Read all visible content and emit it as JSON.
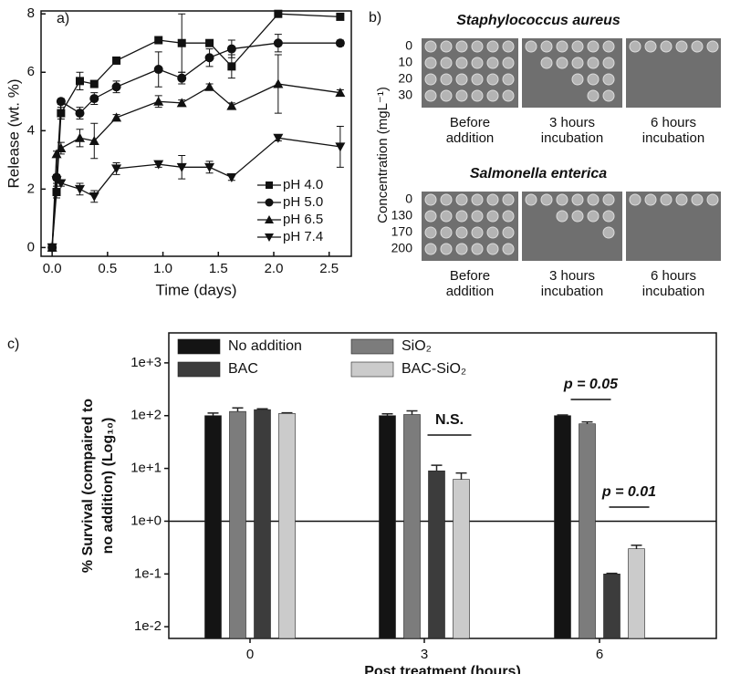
{
  "chart_data": [
    {
      "type": "line",
      "panel_label": "a)",
      "x_label": "Time (days)",
      "y_label": "Release (wt. %)",
      "x": [
        0,
        0.04,
        0.08,
        0.25,
        0.38,
        0.58,
        0.96,
        1.17,
        1.42,
        1.62,
        2.04,
        2.6
      ],
      "series": [
        {
          "name": "pH 4.0",
          "marker": "square",
          "color": "#111111",
          "values": [
            0,
            1.9,
            4.6,
            5.7,
            5.6,
            6.4,
            7.1,
            7.0,
            7.0,
            6.2,
            8.0,
            7.9
          ],
          "errors": [
            0,
            0.2,
            0.2,
            0.3,
            0.1,
            0.1,
            0.1,
            1.0,
            0.1,
            0.4,
            0.1,
            0.1
          ]
        },
        {
          "name": "pH 5.0",
          "marker": "circle",
          "color": "#111111",
          "values": [
            0,
            2.4,
            5.0,
            4.6,
            5.1,
            5.5,
            6.1,
            5.8,
            6.5,
            6.8,
            7.0,
            7.0
          ],
          "errors": [
            0,
            0.1,
            0.1,
            0.2,
            0.2,
            0.2,
            0.6,
            0.2,
            0.3,
            0.3,
            0.3,
            0.1
          ]
        },
        {
          "name": "pH 6.5",
          "marker": "triangle-up",
          "color": "#111111",
          "values": [
            0,
            3.2,
            3.4,
            3.75,
            3.65,
            4.45,
            5.0,
            4.95,
            5.5,
            4.85,
            5.6,
            5.3
          ],
          "errors": [
            0,
            0.1,
            0.2,
            0.3,
            0.6,
            0.1,
            0.2,
            0.1,
            0.1,
            0.1,
            1.0,
            0.1
          ]
        },
        {
          "name": "pH 7.4",
          "marker": "triangle-down",
          "color": "#111111",
          "values": [
            0,
            2.3,
            2.2,
            2.0,
            1.75,
            2.7,
            2.85,
            2.75,
            2.75,
            2.4,
            3.75,
            3.45
          ],
          "errors": [
            0,
            0.1,
            0.1,
            0.2,
            0.2,
            0.2,
            0.1,
            0.4,
            0.2,
            0.1,
            0.1,
            0.7
          ]
        }
      ],
      "xlim": [
        -0.1,
        2.7
      ],
      "ylim": [
        -0.3,
        8.1
      ],
      "xticks": [
        {
          "value": 0,
          "label": "0.0"
        },
        {
          "value": 0.5,
          "label": "0.5"
        },
        {
          "value": 1,
          "label": "1.0"
        },
        {
          "value": 1.5,
          "label": "1.5"
        },
        {
          "value": 2,
          "label": "2.0"
        },
        {
          "value": 2.5,
          "label": "2.5"
        }
      ],
      "yticks": [
        0,
        2,
        4,
        6,
        8
      ],
      "grid": false,
      "legend": "lower-right"
    },
    {
      "type": "bar",
      "panel_label": "c)",
      "log_scale": true,
      "x_label": "Post treatment (hours)",
      "y_label": [
        "% Survival (compaired to",
        "no addition) (Log₁₀)"
      ],
      "categories": [
        "0",
        "3",
        "6"
      ],
      "series": [
        {
          "name": "No addition",
          "color": "#141414",
          "values": [
            100,
            100,
            100
          ],
          "errors": [
            12,
            8,
            3
          ]
        },
        {
          "name": "SiO₂",
          "color": "#7c7c7c",
          "values": [
            120,
            105,
            70
          ],
          "errors": [
            20,
            18,
            6
          ]
        },
        {
          "name": "BAC",
          "color": "#3c3c3c",
          "values": [
            130,
            9,
            0.1
          ],
          "errors": [
            5,
            2.5,
            0.003
          ]
        },
        {
          "name": "BAC-SiO₂",
          "color": "#cbcbcb",
          "values": [
            110,
            6.2,
            0.3
          ],
          "errors": [
            3,
            2,
            0.05
          ]
        }
      ],
      "ylim": [
        0.006,
        3700
      ],
      "yticks": [
        {
          "value": 0.01,
          "label": "1e-2"
        },
        {
          "value": 0.1,
          "label": "1e-1"
        },
        {
          "value": 1,
          "label": "1e+0"
        },
        {
          "value": 10,
          "label": "1e+1"
        },
        {
          "value": 100,
          "label": "1e+2"
        },
        {
          "value": 1000,
          "label": "1e+3"
        }
      ],
      "reference_line": 1,
      "annotations": [
        "N.S.",
        "p = 0.05",
        "p = 0.01"
      ],
      "legend": "upper-left",
      "grid": false
    }
  ],
  "panel_b": {
    "panel_label": "b)",
    "y_label": "Concentration (mgL⁻¹)",
    "columns": [
      [
        "Before",
        "addition"
      ],
      [
        "3 hours",
        "incubation"
      ],
      [
        "6 hours",
        "incubation"
      ]
    ],
    "blocks": [
      {
        "title": "Staphylococcus aureus",
        "rows": [
          "0",
          "10",
          "20",
          "30"
        ]
      },
      {
        "title": "Salmonella enterica",
        "rows": [
          "0",
          "130",
          "170",
          "200"
        ]
      }
    ]
  }
}
